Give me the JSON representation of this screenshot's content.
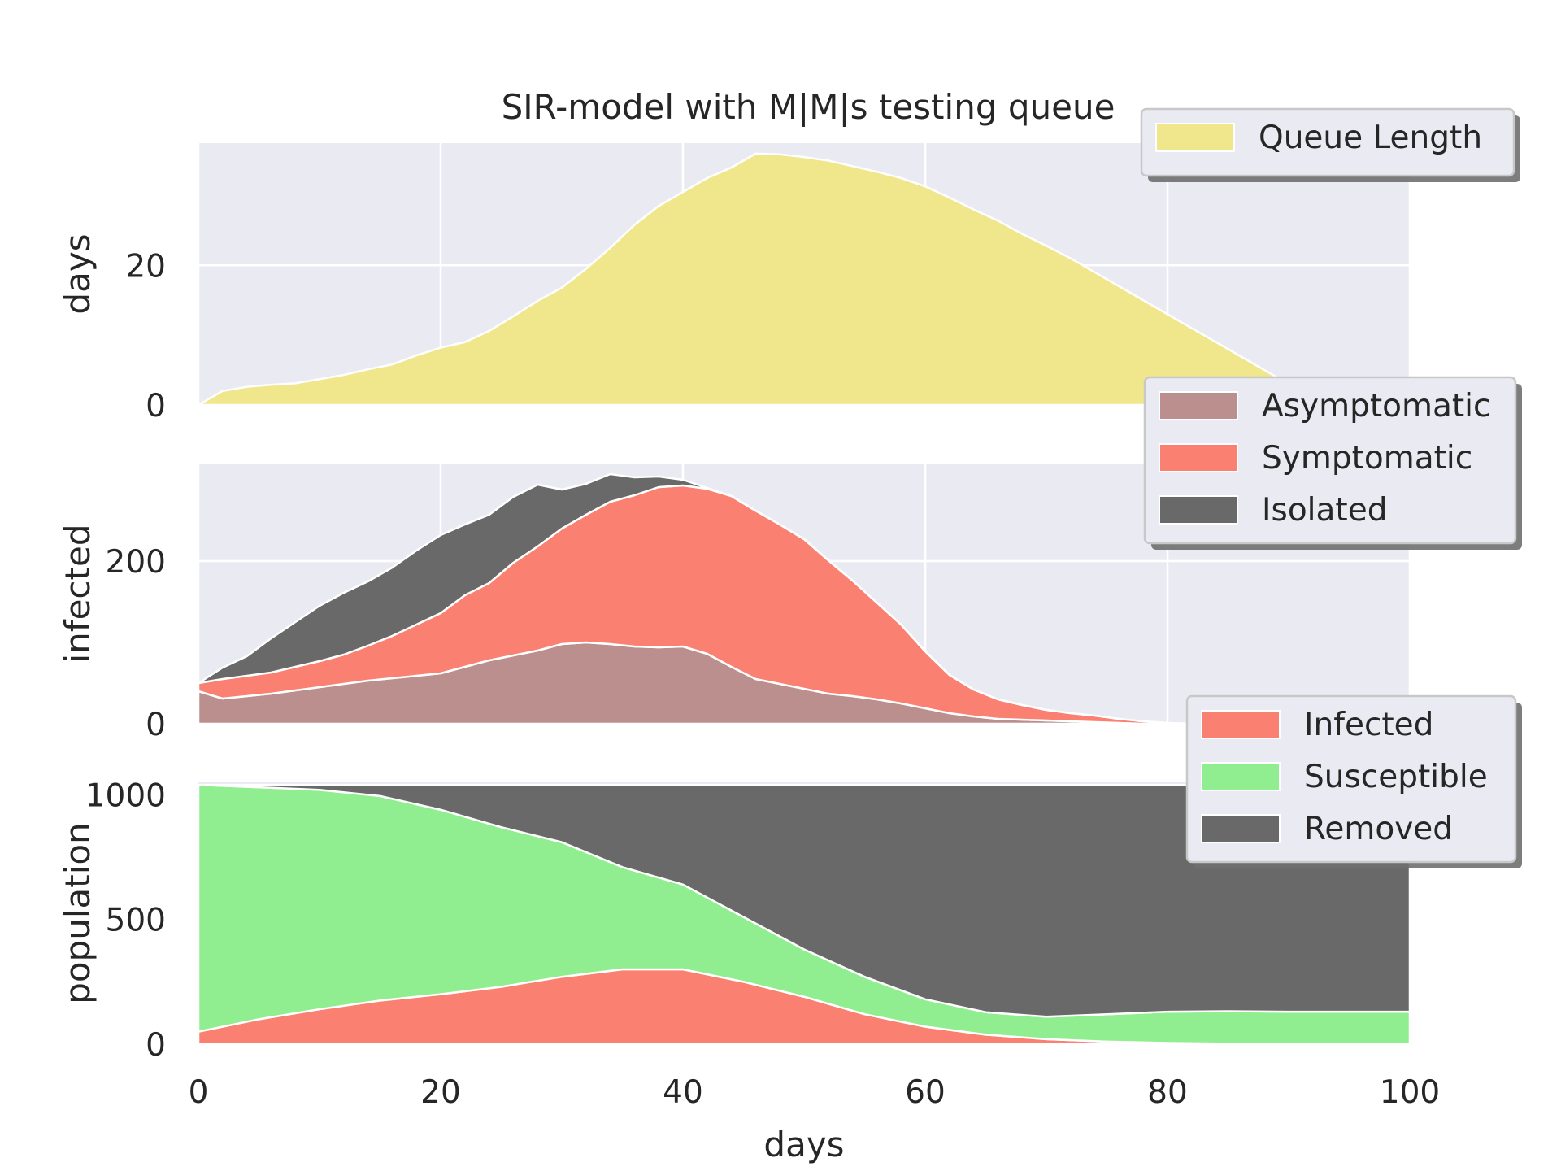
{
  "figure": {
    "title": "SIR-model with M|M|s testing queue"
  },
  "colors": {
    "axes_background": "#EAEAF2",
    "grid": "#FFFFFF",
    "queue": "#F0E68C",
    "asymptomatic": "#BC8F8F",
    "symptomatic": "#FA8072",
    "isolated": "#696969",
    "infected": "#FA8072",
    "susceptible": "#90EE90",
    "removed": "#696969"
  },
  "chart_data": [
    {
      "type": "area",
      "stacked": true,
      "xlabel": "",
      "ylabel": "days",
      "xlim": [
        0,
        100
      ],
      "ylim": [
        0,
        37.5
      ],
      "xticks": [
        0,
        20,
        40,
        60,
        80,
        100
      ],
      "yticks": [
        0,
        20
      ],
      "ytick_labels": [
        "0",
        "20"
      ],
      "grid": true,
      "legend_position": "top-right",
      "x": [
        0,
        2,
        4,
        6,
        8,
        10,
        12,
        14,
        16,
        18,
        20,
        22,
        24,
        26,
        28,
        30,
        32,
        34,
        36,
        38,
        40,
        42,
        44,
        46,
        48,
        50,
        52,
        54,
        56,
        58,
        60,
        62,
        64,
        66,
        68,
        70,
        72,
        74,
        76,
        78,
        80,
        82,
        84,
        86,
        88,
        90,
        92,
        94
      ],
      "series": [
        {
          "name": "Queue Length",
          "color": "#F0E68C",
          "values": [
            0,
            2,
            2.6,
            2.9,
            3.1,
            3.7,
            4.3,
            5.1,
            5.8,
            7.1,
            8.2,
            9.0,
            10.6,
            12.7,
            14.9,
            16.8,
            19.5,
            22.5,
            25.8,
            28.5,
            30.5,
            32.5,
            34.0,
            36.0,
            35.9,
            35.5,
            35.0,
            34.2,
            33.4,
            32.5,
            31.3,
            29.7,
            28.0,
            26.4,
            24.5,
            22.8,
            21.0,
            19.0,
            17.0,
            15.0,
            13.0,
            11.0,
            9.0,
            7.0,
            5.0,
            3.0,
            1.5,
            0
          ]
        }
      ]
    },
    {
      "type": "area",
      "stacked": true,
      "xlabel": "",
      "ylabel": "infected",
      "xlim": [
        0,
        100
      ],
      "ylim": [
        0,
        320
      ],
      "xticks": [
        0,
        20,
        40,
        60,
        80,
        100
      ],
      "yticks": [
        0,
        200
      ],
      "ytick_labels": [
        "0",
        "200"
      ],
      "grid": true,
      "legend_position": "top-right",
      "x": [
        0,
        2,
        4,
        6,
        8,
        10,
        12,
        14,
        16,
        18,
        20,
        22,
        24,
        26,
        28,
        30,
        32,
        34,
        36,
        38,
        40,
        42,
        44,
        46,
        48,
        50,
        52,
        54,
        56,
        58,
        60,
        62,
        64,
        66,
        68,
        70,
        72,
        74,
        76,
        78,
        80,
        82
      ],
      "series": [
        {
          "name": "Asymptomatic",
          "color": "#BC8F8F",
          "values": [
            40,
            31,
            34,
            37,
            41,
            45,
            49,
            53,
            56,
            59,
            62,
            70,
            78,
            84,
            90,
            98,
            100,
            98,
            95,
            94,
            95,
            86,
            70,
            55,
            49,
            43,
            37,
            34,
            30,
            25,
            19,
            13,
            9,
            6,
            5,
            4,
            3,
            2,
            1,
            0,
            0,
            0
          ]
        },
        {
          "name": "Symptomatic",
          "color": "#FA8072",
          "values": [
            10,
            24,
            25,
            26,
            29,
            32,
            36,
            43,
            52,
            63,
            74,
            88,
            95,
            114,
            128,
            142,
            157,
            175,
            186,
            197,
            198,
            203,
            210,
            207,
            196,
            184,
            164,
            142,
            119,
            97,
            70,
            47,
            33,
            24,
            18,
            13,
            10,
            8,
            5,
            3,
            1,
            0
          ]
        },
        {
          "name": "Isolated",
          "color": "#696969",
          "values": [
            0,
            14,
            24,
            42,
            55,
            68,
            76,
            79,
            84,
            91,
            96,
            87,
            84,
            81,
            76,
            48,
            38,
            34,
            22,
            13,
            7,
            1,
            0,
            0,
            0,
            0,
            0,
            0,
            0,
            0,
            0,
            0,
            0,
            0,
            0,
            0,
            0,
            0,
            0,
            0,
            0,
            0
          ]
        }
      ]
    },
    {
      "type": "area",
      "stacked": true,
      "xlabel": "days",
      "ylabel": "population",
      "xlim": [
        0,
        100
      ],
      "ylim": [
        0,
        1050
      ],
      "xticks": [
        0,
        20,
        40,
        60,
        80,
        100
      ],
      "xtick_labels": [
        "0",
        "20",
        "40",
        "60",
        "80",
        "100"
      ],
      "yticks": [
        0,
        500,
        1000
      ],
      "ytick_labels": [
        "0",
        "500",
        "1000"
      ],
      "grid": false,
      "legend_position": "top-right",
      "x": [
        0,
        5,
        10,
        15,
        20,
        25,
        30,
        35,
        40,
        45,
        50,
        55,
        60,
        65,
        70,
        75,
        80,
        85,
        90,
        95,
        100
      ],
      "series": [
        {
          "name": "Infected",
          "color": "#FA8072",
          "values": [
            50,
            100,
            140,
            175,
            200,
            230,
            270,
            300,
            300,
            250,
            190,
            120,
            70,
            38,
            20,
            10,
            5,
            2,
            1,
            0,
            0
          ]
        },
        {
          "name": "Susceptible",
          "color": "#90EE90",
          "values": [
            990,
            930,
            880,
            820,
            740,
            640,
            540,
            410,
            340,
            260,
            190,
            150,
            110,
            90,
            90,
            110,
            125,
            130,
            129,
            130,
            130
          ]
        },
        {
          "name": "Removed",
          "color": "#696969",
          "values": [
            0,
            10,
            20,
            45,
            100,
            170,
            230,
            330,
            400,
            530,
            660,
            770,
            860,
            912,
            930,
            920,
            910,
            908,
            910,
            910,
            910
          ]
        }
      ]
    }
  ]
}
